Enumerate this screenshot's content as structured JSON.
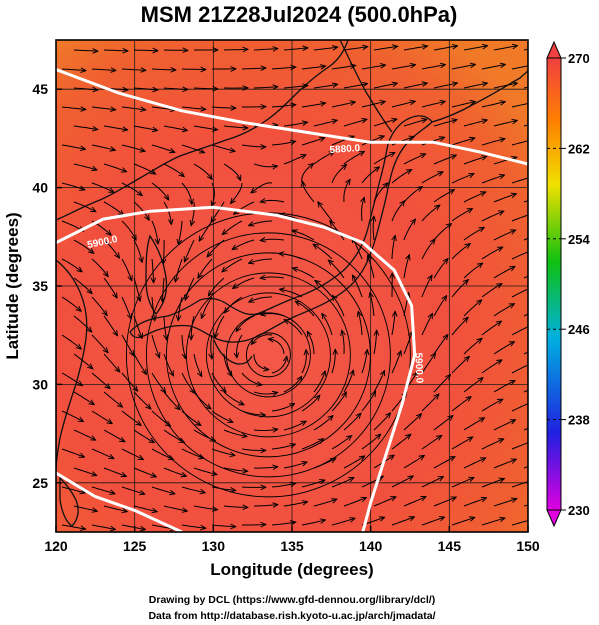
{
  "chart_data": {
    "type": "heatmap",
    "title": "MSM 21Z28Jul2024 (500.0hPa)",
    "xlabel": "Longitude (degrees)",
    "ylabel": "Latitude  (degrees)",
    "xlim": [
      120,
      150
    ],
    "ylim": [
      22.5,
      47.5
    ],
    "xticks": [
      120,
      125,
      130,
      135,
      140,
      145,
      150
    ],
    "yticks": [
      25,
      30,
      35,
      40,
      45
    ],
    "grid": true,
    "colorbar": {
      "min": 230,
      "max": 270,
      "ticks": [
        230,
        238,
        246,
        254,
        262,
        270
      ],
      "placement": "right",
      "colors": [
        "#e000e0",
        "#2020e0",
        "#00b0e0",
        "#10c010",
        "#f0e000",
        "#ff8000",
        "#f04040"
      ]
    },
    "field_value": 267.5,
    "vortex_center": {
      "lon": 133.5,
      "lat": 31.5
    },
    "contours": [
      {
        "label": "5900.0",
        "points": [
          [
            120,
            37.2
          ],
          [
            123,
            38.4
          ],
          [
            126,
            38.8
          ],
          [
            130,
            39.0
          ],
          [
            134,
            38.6
          ],
          [
            137,
            38.0
          ],
          [
            139.5,
            37.2
          ],
          [
            141.5,
            35.8
          ],
          [
            142.6,
            34.0
          ],
          [
            142.8,
            31.5
          ],
          [
            142.0,
            29.0
          ],
          [
            141.0,
            26.5
          ],
          [
            140.0,
            24.0
          ],
          [
            139.5,
            22.5
          ]
        ]
      },
      {
        "label": "5880.0",
        "points": [
          [
            120,
            46.0
          ],
          [
            124,
            44.8
          ],
          [
            128,
            43.9
          ],
          [
            132,
            43.3
          ],
          [
            136,
            42.8
          ],
          [
            140,
            42.3
          ],
          [
            144,
            42.3
          ],
          [
            147,
            41.8
          ],
          [
            150,
            41.2
          ]
        ]
      },
      {
        "label": "",
        "points": [
          [
            120,
            25.5
          ],
          [
            122.5,
            24.3
          ],
          [
            125,
            23.6
          ],
          [
            128,
            22.5
          ]
        ]
      }
    ],
    "contour_labels": [
      "5880.0",
      "5900.0",
      "5900.0"
    ],
    "credits": [
      "Drawing by DCL (https://www.gfd-dennou.org/library/dcl/)",
      "Data from http://database.rish.kyoto-u.ac.jp/arch/jmadata/"
    ]
  }
}
